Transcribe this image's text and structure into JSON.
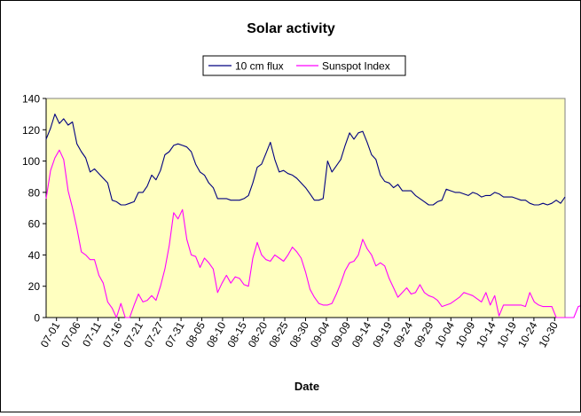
{
  "chart_data": {
    "type": "line",
    "title": "Solar activity",
    "xlabel": "Date",
    "ylabel": "",
    "ylim": [
      0,
      140
    ],
    "yticks": [
      0,
      20,
      40,
      60,
      80,
      100,
      120,
      140
    ],
    "xtick_labels": [
      "07-01",
      "07-06",
      "07-11",
      "07-16",
      "07-21",
      "07-27",
      "07-31",
      "08-05",
      "08-10",
      "08-15",
      "08-20",
      "08-25",
      "08-30",
      "09-04",
      "09-09",
      "09-14",
      "09-19",
      "09-24",
      "09-29",
      "10-04",
      "10-09",
      "10-14",
      "10-19",
      "10-24",
      "10-30"
    ],
    "legend_position": "top",
    "grid": false,
    "plot_background": "#FFFFC0",
    "series": [
      {
        "name": "10 cm flux",
        "color": "#000080",
        "values": [
          114,
          121,
          130,
          124,
          127,
          123,
          125,
          111,
          106,
          102,
          93,
          95,
          92,
          89,
          86,
          75,
          74,
          72,
          72,
          73,
          74,
          80,
          80,
          84,
          91,
          88,
          94,
          104,
          106,
          110,
          111,
          110,
          109,
          106,
          98,
          93,
          91,
          86,
          83,
          76,
          76,
          76,
          75,
          75,
          75,
          76,
          78,
          86,
          96,
          98,
          105,
          112,
          101,
          93,
          94,
          92,
          91,
          89,
          86,
          83,
          79,
          75,
          75,
          76,
          100,
          93,
          97,
          101,
          110,
          118,
          114,
          118,
          119,
          112,
          104,
          101,
          91,
          87,
          86,
          83,
          85,
          81,
          81,
          81,
          78,
          76,
          74,
          72,
          72,
          74,
          75,
          82,
          81,
          80,
          80,
          79,
          78,
          80,
          79,
          77,
          78,
          78,
          80,
          79,
          77,
          77,
          77,
          76,
          75,
          75,
          73,
          72,
          72,
          73,
          72,
          73,
          75,
          73,
          77
        ]
      },
      {
        "name": "Sunspot Index",
        "color": "#FF00FF",
        "values": [
          76,
          94,
          102,
          107,
          101,
          81,
          70,
          57,
          42,
          40,
          37,
          37,
          27,
          22,
          10,
          6,
          0,
          9,
          0,
          0,
          8,
          15,
          10,
          11,
          14,
          11,
          20,
          31,
          46,
          67,
          63,
          69,
          50,
          40,
          39,
          32,
          38,
          35,
          31,
          16,
          22,
          27,
          22,
          26,
          25,
          21,
          20,
          38,
          48,
          40,
          37,
          36,
          40,
          38,
          36,
          40,
          45,
          42,
          38,
          29,
          18,
          13,
          9,
          8,
          8,
          9,
          15,
          22,
          30,
          35,
          36,
          40,
          50,
          44,
          40,
          33,
          35,
          33,
          25,
          19,
          13,
          16,
          19,
          15,
          16,
          21,
          16,
          14,
          13,
          11,
          7,
          8,
          9,
          11,
          13,
          16,
          15,
          14,
          12,
          10,
          16,
          8,
          14,
          1,
          8,
          8,
          8,
          8,
          8,
          7,
          16,
          10,
          8,
          7,
          7,
          7,
          0,
          0,
          0,
          0,
          0,
          7,
          8,
          11
        ]
      }
    ]
  }
}
